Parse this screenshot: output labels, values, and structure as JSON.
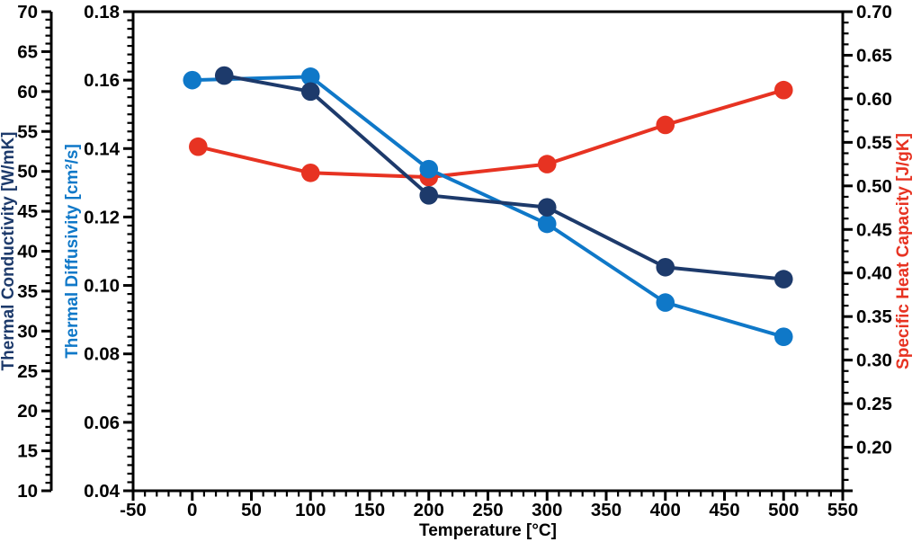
{
  "figure": {
    "background": "#ffffff",
    "frame_color": "#000000"
  },
  "chart_data": {
    "type": "line",
    "title": "",
    "grid": false,
    "legend": "none",
    "x_axis": {
      "label": "Temperature [°C]",
      "min": -50,
      "max": 550,
      "major_step": 50,
      "minor_step": 10,
      "tick_labels": [
        "-50",
        "0",
        "50",
        "100",
        "150",
        "200",
        "250",
        "300",
        "350",
        "400",
        "450",
        "500",
        "550"
      ],
      "color": "#000000"
    },
    "y_axes": [
      {
        "id": "conductivity",
        "side": "left-outer",
        "label": "Thermal Conductivity [W/mK]",
        "color": "#1d3a6b",
        "min": 10,
        "max": 70,
        "major_step": 5,
        "minor_step": 1,
        "tick_labels": [
          "10",
          "15",
          "20",
          "25",
          "30",
          "35",
          "40",
          "45",
          "50",
          "55",
          "60",
          "65",
          "70"
        ]
      },
      {
        "id": "diffusivity",
        "side": "left-frame",
        "label": "Thermal Diffusivity [cm²/s]",
        "color": "#0f78c8",
        "min": 0.04,
        "max": 0.18,
        "major_step": 0.02,
        "minor_step": 0.0025,
        "tick_labels": [
          "0.04",
          "0.06",
          "0.08",
          "0.10",
          "0.12",
          "0.14",
          "0.16",
          "0.18"
        ]
      },
      {
        "id": "heat_capacity",
        "side": "right-frame",
        "label": "Specific Heat Capacity [J/gK]",
        "color": "#e73322",
        "min": 0.15,
        "max": 0.7,
        "major_step": 0.05,
        "minor_step": 0.0125,
        "tick_labels": [
          "",
          "0.20",
          "0.25",
          "0.30",
          "0.35",
          "0.40",
          "0.45",
          "0.50",
          "0.55",
          "0.60",
          "0.65",
          "0.70"
        ]
      }
    ],
    "series": [
      {
        "name": "Specific Heat Capacity",
        "axis": "heat_capacity",
        "color": "#e73322",
        "x": [
          5,
          100,
          200,
          300,
          400,
          500
        ],
        "y": [
          0.545,
          0.515,
          0.51,
          0.525,
          0.57,
          0.61
        ]
      },
      {
        "name": "Thermal Diffusivity",
        "axis": "diffusivity",
        "color": "#0f78c8",
        "x": [
          0,
          100,
          200,
          300,
          400,
          500
        ],
        "y": [
          0.16,
          0.161,
          0.134,
          0.118,
          0.095,
          0.085
        ]
      },
      {
        "name": "Thermal Conductivity",
        "axis": "conductivity",
        "color": "#1d3a6b",
        "x": [
          27,
          100,
          200,
          300,
          400,
          500
        ],
        "y": [
          62,
          60,
          47,
          45.5,
          38,
          36.5
        ]
      }
    ]
  }
}
